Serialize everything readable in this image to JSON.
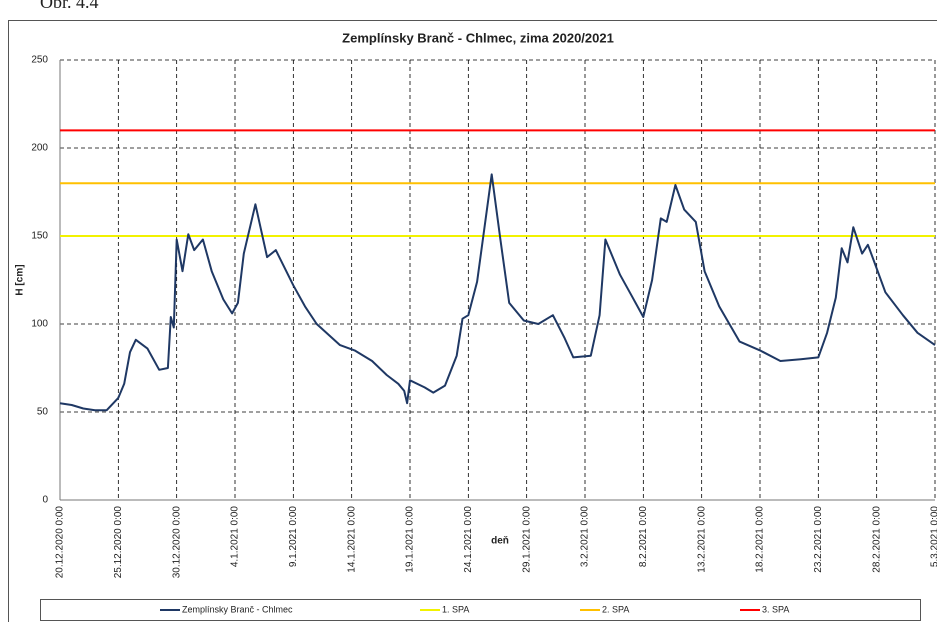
{
  "figure_label": "Obr. 4.4",
  "chart_data": {
    "type": "line",
    "title": "Zemplínsky Branč - Chlmec, zima 2020/2021",
    "x_label": "deň",
    "y_label": "H [cm]",
    "grid": true,
    "legend": "bottom",
    "ylim": [
      0,
      250
    ],
    "yticks": [
      0,
      50,
      100,
      150,
      200,
      250
    ],
    "xlim": [
      "2020-12-20T00:00",
      "2021-03-05T00:00"
    ],
    "xticks": [
      {
        "value": "2020-12-20T00:00",
        "label": "20.12.2020 0:00"
      },
      {
        "value": "2020-12-25T00:00",
        "label": "25.12.2020 0:00"
      },
      {
        "value": "2020-12-30T00:00",
        "label": "30.12.2020 0:00"
      },
      {
        "value": "2021-01-04T00:00",
        "label": "4.1.2021 0:00"
      },
      {
        "value": "2021-01-09T00:00",
        "label": "9.1.2021 0:00"
      },
      {
        "value": "2021-01-14T00:00",
        "label": "14.1.2021 0:00"
      },
      {
        "value": "2021-01-19T00:00",
        "label": "19.1.2021 0:00"
      },
      {
        "value": "2021-01-24T00:00",
        "label": "24.1.2021 0:00"
      },
      {
        "value": "2021-01-29T00:00",
        "label": "29.1.2021 0:00"
      },
      {
        "value": "2021-02-03T00:00",
        "label": "3.2.2021 0:00"
      },
      {
        "value": "2021-02-08T00:00",
        "label": "8.2.2021 0:00"
      },
      {
        "value": "2021-02-13T00:00",
        "label": "13.2.2021 0:00"
      },
      {
        "value": "2021-02-18T00:00",
        "label": "18.2.2021 0:00"
      },
      {
        "value": "2021-02-23T00:00",
        "label": "23.2.2021 0:00"
      },
      {
        "value": "2021-02-28T00:00",
        "label": "28.2.2021 0:00"
      },
      {
        "value": "2021-03-05T00:00",
        "label": "5.3.2021 0:00"
      }
    ],
    "x": [
      "2020-12-20T00:00",
      "2020-12-21T00:00",
      "2020-12-22T00:00",
      "2020-12-23T00:00",
      "2020-12-24T00:00",
      "2020-12-25T00:00",
      "2020-12-25T12:00",
      "2020-12-26T00:00",
      "2020-12-26T12:00",
      "2020-12-27T12:00",
      "2020-12-28T12:00",
      "2020-12-29T06:00",
      "2020-12-29T12:00",
      "2020-12-29T18:00",
      "2020-12-30T00:00",
      "2020-12-30T12:00",
      "2020-12-31T00:00",
      "2020-12-31T12:00",
      "2021-01-01T06:00",
      "2021-01-02T00:00",
      "2021-01-03T00:00",
      "2021-01-03T18:00",
      "2021-01-04T06:00",
      "2021-01-04T18:00",
      "2021-01-05T18:00",
      "2021-01-06T18:00",
      "2021-01-07T12:00",
      "2021-01-09T00:00",
      "2021-01-10T00:00",
      "2021-01-11T00:00",
      "2021-01-13T00:00",
      "2021-01-14T06:00",
      "2021-01-15T18:00",
      "2021-01-17T00:00",
      "2021-01-18T00:00",
      "2021-01-18T12:00",
      "2021-01-18T18:00",
      "2021-01-19T00:00",
      "2021-01-20T06:00",
      "2021-01-21T00:00",
      "2021-01-22T00:00",
      "2021-01-23T00:00",
      "2021-01-23T12:00",
      "2021-01-24T00:00",
      "2021-01-24T18:00",
      "2021-01-26T00:00",
      "2021-01-26T18:00",
      "2021-01-27T12:00",
      "2021-01-28T18:00",
      "2021-01-30T00:00",
      "2021-01-31T06:00",
      "2021-02-01T06:00",
      "2021-02-02T00:00",
      "2021-02-03T12:00",
      "2021-02-04T06:00",
      "2021-02-04T18:00",
      "2021-02-06T00:00",
      "2021-02-07T00:00",
      "2021-02-08T00:00",
      "2021-02-08T18:00",
      "2021-02-09T12:00",
      "2021-02-10T00:00",
      "2021-02-10T18:00",
      "2021-02-11T12:00",
      "2021-02-12T12:00",
      "2021-02-13T06:00",
      "2021-02-14T12:00",
      "2021-02-16T06:00",
      "2021-02-18T00:00",
      "2021-02-19T18:00",
      "2021-02-21T12:00",
      "2021-02-23T00:00",
      "2021-02-23T18:00",
      "2021-02-24T12:00",
      "2021-02-25T00:00",
      "2021-02-25T12:00",
      "2021-02-26T00:00",
      "2021-02-26T18:00",
      "2021-02-27T06:00",
      "2021-02-27T18:00",
      "2021-02-28T18:00",
      "2021-03-02T06:00",
      "2021-03-03T12:00",
      "2021-03-05T00:00"
    ],
    "series": [
      {
        "name": "Zemplínsky Branč - Chlmec",
        "color": "#1f3864",
        "values": [
          55,
          54,
          52,
          51,
          51,
          58,
          66,
          84,
          91,
          86,
          74,
          75,
          104,
          98,
          148,
          130,
          151,
          142,
          148,
          130,
          114,
          106,
          112,
          140,
          168,
          138,
          142,
          122,
          110,
          100,
          88,
          85,
          79,
          71,
          66,
          62,
          55,
          68,
          64,
          61,
          65,
          82,
          103,
          105,
          124,
          185,
          148,
          112,
          102,
          100,
          105,
          92,
          81,
          82,
          105,
          148,
          128,
          116,
          104,
          125,
          160,
          158,
          179,
          165,
          158,
          130,
          110,
          90,
          85,
          79,
          80,
          81,
          95,
          115,
          143,
          135,
          155,
          140,
          145,
          136,
          118,
          105,
          95,
          88
        ]
      }
    ],
    "thresholds": [
      {
        "name": "1. SPA",
        "value": 150,
        "color": "#f2f200"
      },
      {
        "name": "2. SPA",
        "value": 180,
        "color": "#ffc000"
      },
      {
        "name": "3. SPA",
        "value": 210,
        "color": "#ff0000"
      }
    ]
  }
}
